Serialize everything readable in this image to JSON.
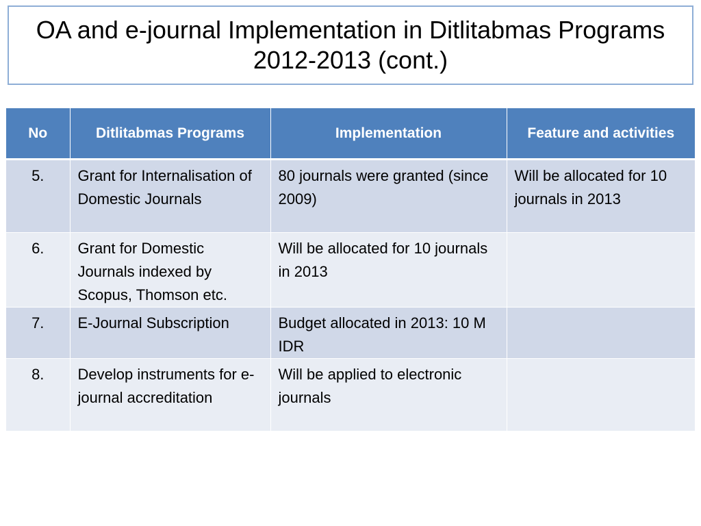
{
  "title": "OA  and e-journal Implementation in Ditlitabmas Programs 2012-2013 (cont.)",
  "table": {
    "headers": [
      "No",
      "Ditlitabmas Programs",
      "Implementation",
      "Feature and activities"
    ],
    "rows": [
      {
        "no": "5.",
        "program": "Grant for Internalisation of Domestic Journals",
        "implementation": "80 journals were granted (since 2009)",
        "feature": "Will be allocated for 10 journals in 2013"
      },
      {
        "no": "6.",
        "program": "Grant for Domestic Journals indexed by Scopus, Thomson etc.",
        "implementation": "Will be allocated for 10 journals in 2013",
        "feature": ""
      },
      {
        "no": "7.",
        "program": "E-Journal Subscription",
        "implementation": "Budget allocated in 2013: 10 M IDR",
        "feature": ""
      },
      {
        "no": "8.",
        "program": "Develop instruments for e-journal accreditation",
        "implementation": "Will be applied to electronic journals",
        "feature": ""
      }
    ]
  },
  "colors": {
    "header_bg": "#4f81bd",
    "row_dark": "#d0d8e8",
    "row_light": "#e9edf4",
    "title_border": "#8eaed6"
  }
}
